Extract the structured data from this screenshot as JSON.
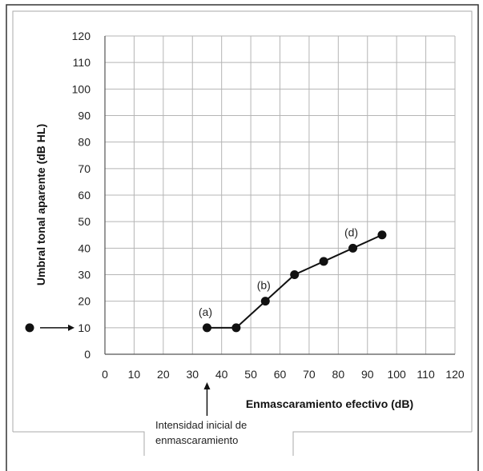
{
  "chart_data": {
    "type": "line",
    "xlabel": "Enmascaramiento efectivo (dB)",
    "ylabel": "Umbral tonal aparente (dB HL)",
    "x_ticks": [
      "0",
      "10",
      "20",
      "30",
      "40",
      "50",
      "60",
      "70",
      "80",
      "90",
      "100",
      "110",
      "120"
    ],
    "y_ticks": [
      "0",
      "10",
      "20",
      "30",
      "40",
      "50",
      "60",
      "70",
      "80",
      "90",
      "100",
      "110",
      "120"
    ],
    "xlim": [
      0,
      120
    ],
    "ylim": [
      0,
      120
    ],
    "grid": true,
    "series": [
      {
        "x": [
          35,
          45,
          55,
          65,
          75,
          85,
          95
        ],
        "y": [
          10,
          10,
          20,
          30,
          35,
          40,
          45
        ]
      }
    ],
    "point_labels": [
      {
        "text": "(a)",
        "x": 35,
        "y": 10
      },
      {
        "text": "(b)",
        "x": 55,
        "y": 20
      },
      {
        "text": "(d)",
        "x": 85,
        "y": 40
      }
    ],
    "reference_value": 10,
    "annotation": {
      "line1": "Intensidad inicial de",
      "line2": "enmascaramiento",
      "x": 35
    },
    "colors": {
      "line": "#111111",
      "grid": "#b5b5b5",
      "frame": "#333333"
    }
  }
}
